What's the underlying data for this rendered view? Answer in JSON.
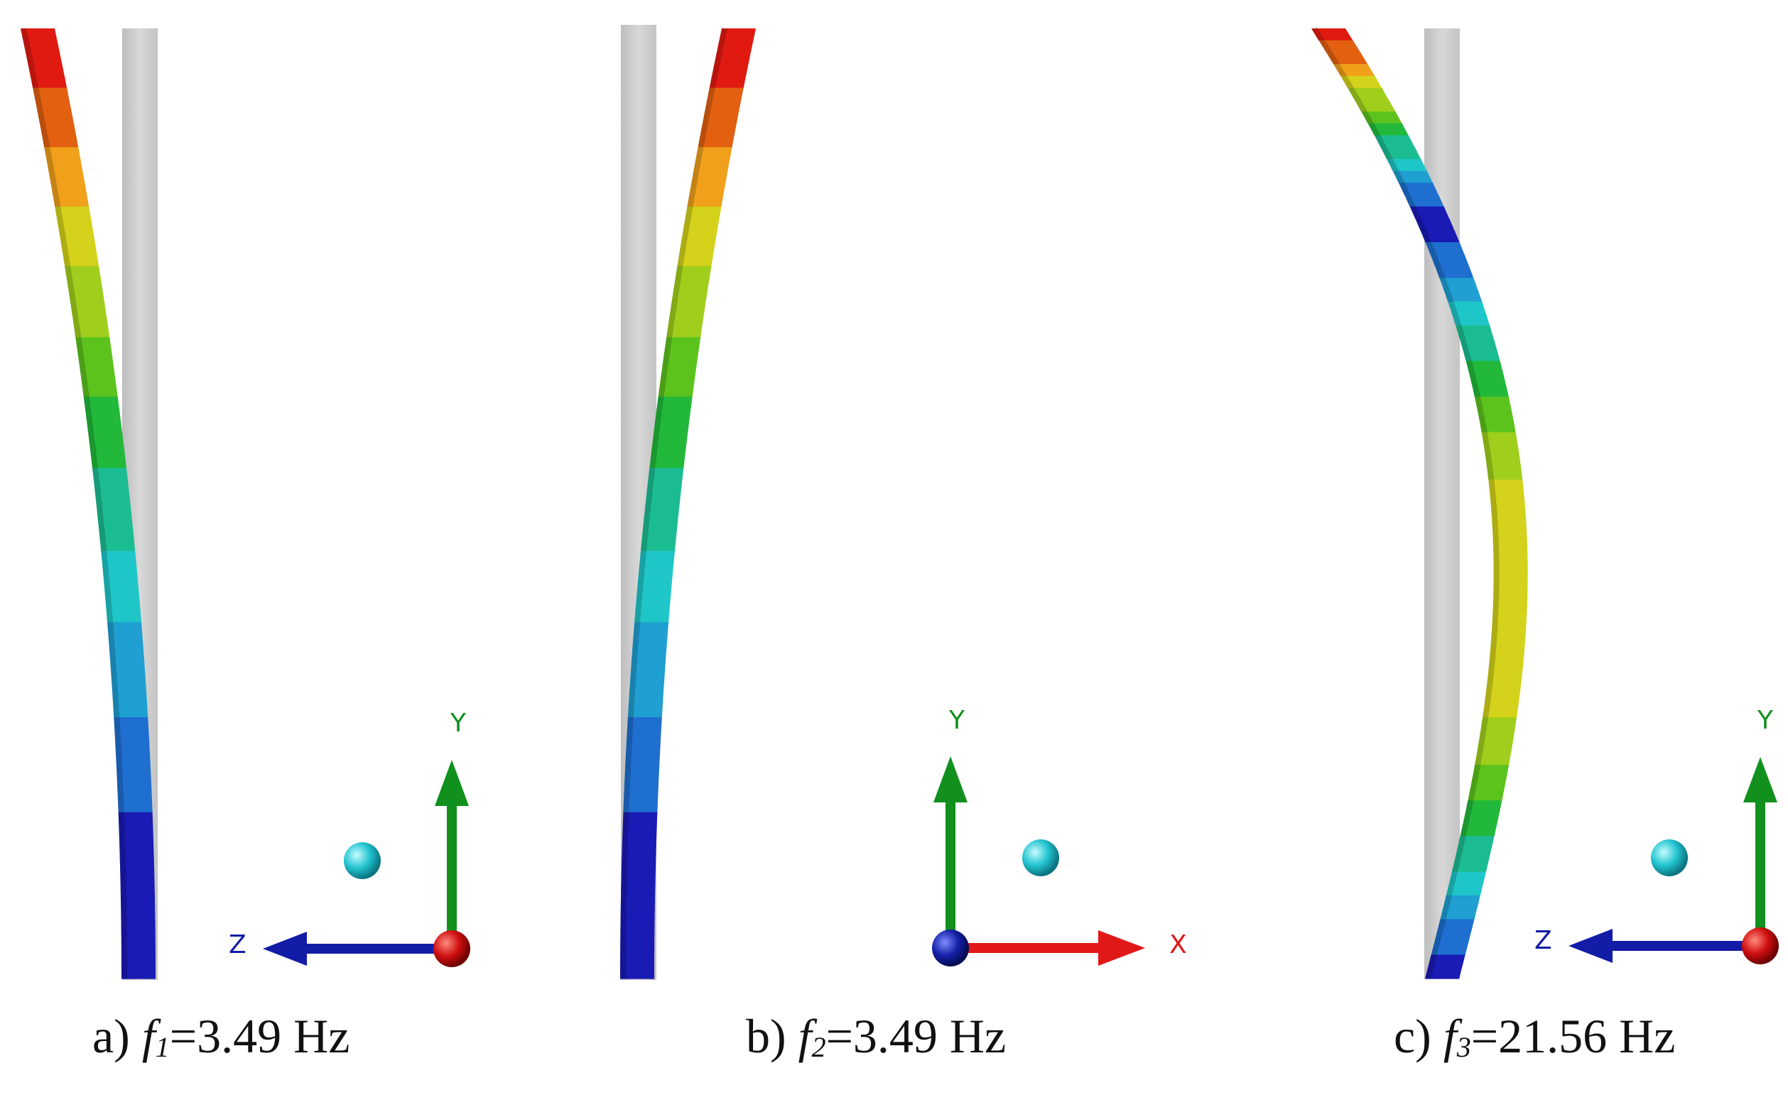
{
  "colors": {
    "beam_scale": [
      "#1a1ab4",
      "#1e6fd0",
      "#1f9fd2",
      "#1fc6c8",
      "#1cbc92",
      "#22b93a",
      "#5cc31d",
      "#9fcf1c",
      "#d4d21a",
      "#f0a01a",
      "#e26010",
      "#e01a10"
    ],
    "undeformed_beam": "#cfcfcf",
    "axis_x": "#e01818",
    "axis_y": "#11901d",
    "axis_z": "#121ca6",
    "node_ball": "#26c8d2"
  },
  "panels": [
    {
      "id": "a",
      "caption": {
        "prefix": "a) ",
        "symbol": "f",
        "sub": "1",
        "value": "=3.49 Hz"
      },
      "mode": "first bending, z-direction",
      "axes": {
        "horizontal": "Z",
        "vertical": "Y",
        "out_of_plane": "X"
      }
    },
    {
      "id": "b",
      "caption": {
        "prefix": "b) ",
        "symbol": "f",
        "sub": "2",
        "value": "=3.49 Hz"
      },
      "mode": "first bending, x-direction",
      "axes": {
        "horizontal": "X",
        "vertical": "Y",
        "out_of_plane": "Z"
      }
    },
    {
      "id": "c",
      "caption": {
        "prefix": "c) ",
        "symbol": "f",
        "sub": "3",
        "value": "=21.56 Hz"
      },
      "mode": "second bending, z-direction",
      "axes": {
        "horizontal": "Z",
        "vertical": "Y",
        "out_of_plane": "X"
      }
    }
  ]
}
